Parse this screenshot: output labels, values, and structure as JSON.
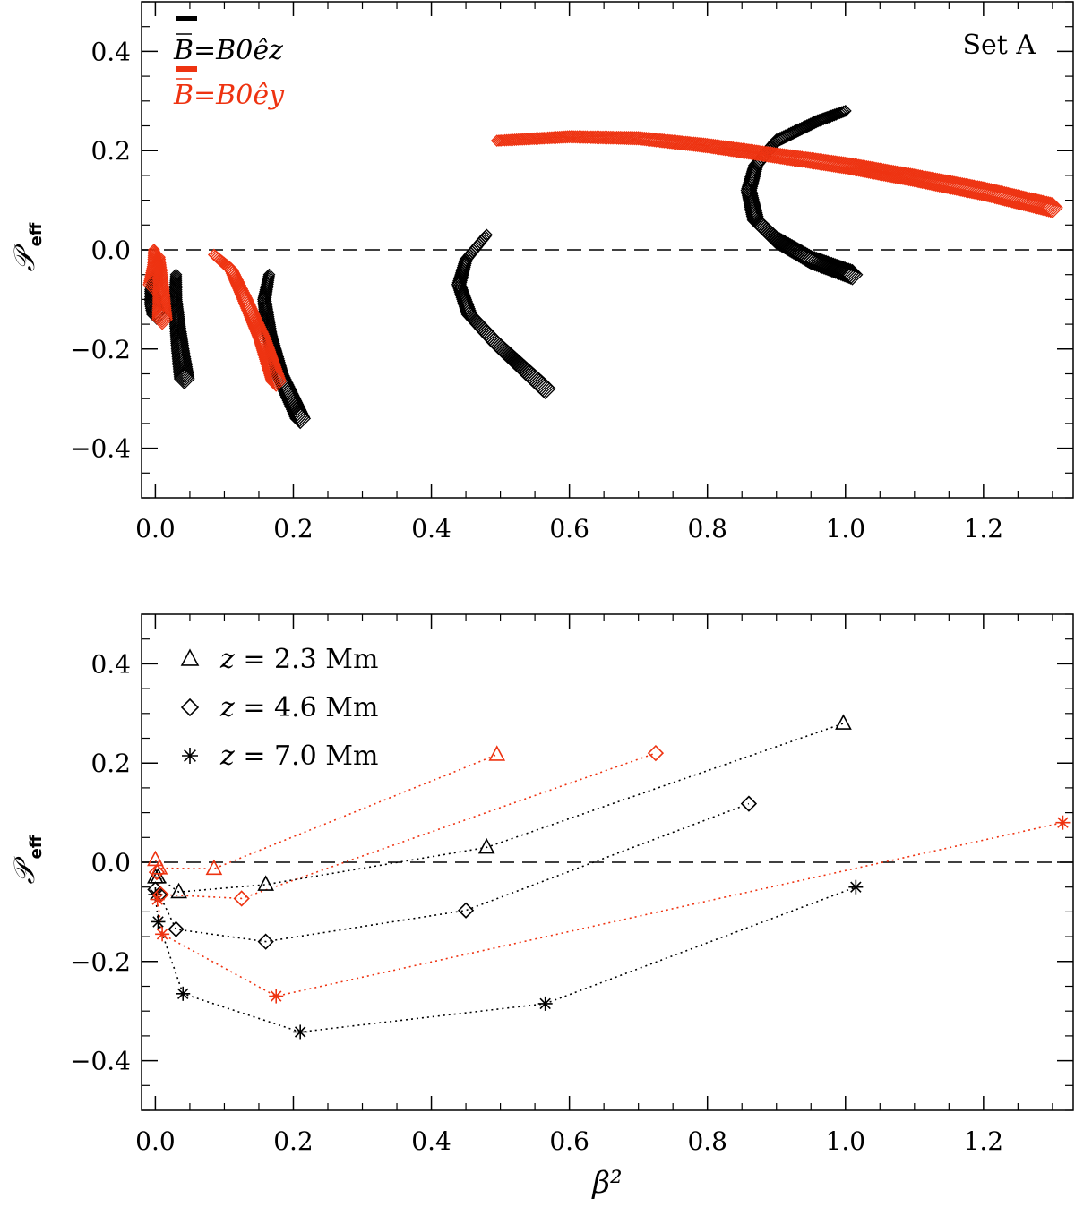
{
  "chart_data": [
    {
      "type": "scatter",
      "panel": "top",
      "title": "",
      "annotation": "Set A",
      "xlabel": "",
      "ylabel": "𝒫",
      "ylabel_sub": "eff",
      "xlim": [
        -0.02,
        1.33
      ],
      "ylim": [
        -0.5,
        0.5
      ],
      "xticks": [
        0.0,
        0.2,
        0.4,
        0.6,
        0.8,
        1.0,
        1.2
      ],
      "xtick_labels": [
        "0.0",
        "0.2",
        "0.4",
        "0.6",
        "0.8",
        "1.0",
        "1.2"
      ],
      "yticks": [
        -0.4,
        -0.2,
        0.0,
        0.2,
        0.4
      ],
      "ytick_labels": [
        "−0.4",
        "−0.2",
        "0.0",
        "0.2",
        "0.4"
      ],
      "reference_line": 0.0,
      "legend": [
        {
          "label": "B=B0êz",
          "color": "#000000"
        },
        {
          "label": "B=B0êy",
          "color": "#ee3311"
        }
      ],
      "series": [
        {
          "name": "B=B0êz",
          "color": "#000000",
          "marker": "diamond",
          "curves": [
            [
              [
                0.0,
                -0.05
              ],
              [
                -0.005,
                -0.08
              ],
              [
                -0.003,
                -0.11
              ],
              [
                0.002,
                -0.13
              ]
            ],
            [
              [
                0.03,
                -0.05
              ],
              [
                0.029,
                -0.1
              ],
              [
                0.032,
                -0.15
              ],
              [
                0.036,
                -0.2
              ],
              [
                0.042,
                -0.26
              ]
            ],
            [
              [
                0.165,
                -0.05
              ],
              [
                0.158,
                -0.1
              ],
              [
                0.165,
                -0.17
              ],
              [
                0.18,
                -0.25
              ],
              [
                0.21,
                -0.34
              ]
            ],
            [
              [
                0.48,
                0.03
              ],
              [
                0.45,
                -0.02
              ],
              [
                0.44,
                -0.07
              ],
              [
                0.455,
                -0.13
              ],
              [
                0.495,
                -0.19
              ],
              [
                0.53,
                -0.235
              ],
              [
                0.565,
                -0.28
              ]
            ],
            [
              [
                1.0,
                0.28
              ],
              [
                0.96,
                0.26
              ],
              [
                0.9,
                0.22
              ],
              [
                0.87,
                0.17
              ],
              [
                0.86,
                0.12
              ],
              [
                0.87,
                0.06
              ],
              [
                0.9,
                0.02
              ],
              [
                0.95,
                -0.02
              ],
              [
                1.01,
                -0.05
              ]
            ]
          ]
        },
        {
          "name": "B=B0êy",
          "color": "#ee3311",
          "marker": "diamond",
          "curves": [
            [
              [
                -0.002,
                0.0
              ],
              [
                0.0,
                -0.03
              ],
              [
                -0.003,
                -0.07
              ]
            ],
            [
              [
                0.006,
                -0.015
              ],
              [
                0.008,
                -0.07
              ],
              [
                0.01,
                -0.14
              ]
            ],
            [
              [
                0.085,
                -0.01
              ],
              [
                0.11,
                -0.04
              ],
              [
                0.13,
                -0.1
              ],
              [
                0.155,
                -0.18
              ],
              [
                0.175,
                -0.265
              ]
            ],
            [
              [
                0.495,
                0.22
              ],
              [
                0.6,
                0.228
              ],
              [
                0.7,
                0.225
              ],
              [
                0.8,
                0.21
              ],
              [
                0.9,
                0.19
              ],
              [
                1.0,
                0.17
              ],
              [
                1.1,
                0.145
              ],
              [
                1.2,
                0.118
              ],
              [
                1.3,
                0.085
              ]
            ]
          ]
        }
      ]
    },
    {
      "type": "line",
      "panel": "bottom",
      "title": "",
      "xlabel": "β²",
      "ylabel": "𝒫",
      "ylabel_sub": "eff",
      "xlim": [
        -0.02,
        1.33
      ],
      "ylim": [
        -0.5,
        0.5
      ],
      "xticks": [
        0.0,
        0.2,
        0.4,
        0.6,
        0.8,
        1.0,
        1.2
      ],
      "xtick_labels": [
        "0.0",
        "0.2",
        "0.4",
        "0.6",
        "0.8",
        "1.0",
        "1.2"
      ],
      "yticks": [
        -0.4,
        -0.2,
        0.0,
        0.2,
        0.4
      ],
      "ytick_labels": [
        "−0.4",
        "−0.2",
        "0.0",
        "0.2",
        "0.4"
      ],
      "reference_line": 0.0,
      "legend": [
        {
          "marker": "triangle",
          "label": "z = 2.3 Mm"
        },
        {
          "marker": "diamond",
          "label": "z = 4.6 Mm"
        },
        {
          "marker": "star",
          "label": "z = 7.0 Mm"
        }
      ],
      "series": [
        {
          "name": "z = 2.3 Mm",
          "field": "B=B0êz",
          "marker": "triangle",
          "color": "#000000",
          "points": [
            [
              0.0,
              -0.03
            ],
            [
              0.004,
              -0.03
            ],
            [
              0.034,
              -0.06
            ],
            [
              0.16,
              -0.045
            ],
            [
              0.48,
              0.03
            ],
            [
              0.997,
              0.28
            ]
          ]
        },
        {
          "name": "z = 4.6 Mm",
          "field": "B=B0êz",
          "marker": "diamond",
          "color": "#000000",
          "points": [
            [
              0.0,
              -0.055
            ],
            [
              0.006,
              -0.065
            ],
            [
              0.03,
              -0.135
            ],
            [
              0.16,
              -0.16
            ],
            [
              0.45,
              -0.097
            ],
            [
              0.86,
              0.118
            ]
          ]
        },
        {
          "name": "z = 7.0 Mm",
          "field": "B=B0êz",
          "marker": "star",
          "color": "#000000",
          "points": [
            [
              0.0,
              -0.065
            ],
            [
              0.004,
              -0.12
            ],
            [
              0.04,
              -0.265
            ],
            [
              0.21,
              -0.342
            ],
            [
              0.565,
              -0.285
            ],
            [
              1.015,
              -0.05
            ]
          ]
        },
        {
          "name": "z = 2.3 Mm",
          "field": "B=B0êy",
          "marker": "triangle",
          "color": "#ee3311",
          "points": [
            [
              0.0,
              0.005
            ],
            [
              0.006,
              -0.012
            ],
            [
              0.085,
              -0.013
            ],
            [
              0.495,
              0.217
            ]
          ]
        },
        {
          "name": "z = 4.6 Mm",
          "field": "B=B0êy",
          "marker": "diamond",
          "color": "#ee3311",
          "points": [
            [
              0.002,
              -0.02
            ],
            [
              0.008,
              -0.065
            ],
            [
              0.125,
              -0.073
            ],
            [
              0.725,
              0.22
            ]
          ]
        },
        {
          "name": "z = 7.0 Mm",
          "field": "B=B0êy",
          "marker": "star",
          "color": "#ee3311",
          "points": [
            [
              0.003,
              -0.075
            ],
            [
              0.01,
              -0.145
            ],
            [
              0.175,
              -0.27
            ],
            [
              1.315,
              0.08
            ]
          ]
        }
      ]
    }
  ]
}
